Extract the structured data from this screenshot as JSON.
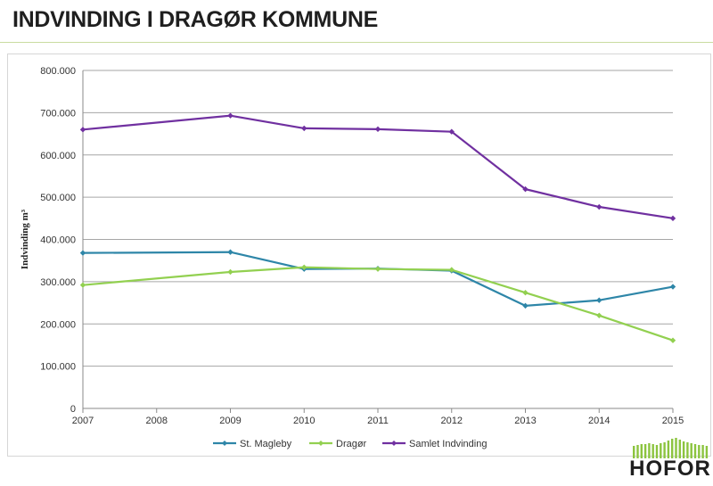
{
  "slide": {
    "title": "INDVINDING I DRAGØR KOMMUNE"
  },
  "logo": {
    "text": "HOFOR",
    "accent_color": "#8cc43f"
  },
  "chart_data": {
    "type": "line",
    "ylabel": "Indvinding m³",
    "xlabel": "",
    "x": [
      2007,
      2008,
      2009,
      2010,
      2011,
      2012,
      2013,
      2014,
      2015
    ],
    "x_tick_labels": [
      "2007",
      "2008",
      "2009",
      "2010",
      "2011",
      "2012",
      "2013",
      "2014",
      "2015"
    ],
    "xlim": [
      2007,
      2015
    ],
    "ylim": [
      0,
      800000
    ],
    "y_ticks": [
      0,
      100000,
      200000,
      300000,
      400000,
      500000,
      600000,
      700000,
      800000
    ],
    "y_tick_labels": [
      "0",
      "100.000",
      "200.000",
      "300.000",
      "400.000",
      "500.000",
      "600.000",
      "700.000",
      "800.000"
    ],
    "grid": true,
    "legend_position": "bottom",
    "series": [
      {
        "name": "St. Magleby",
        "color": "#2e86a8",
        "points": [
          [
            2007,
            368000
          ],
          [
            2009,
            370000
          ],
          [
            2010,
            330000
          ],
          [
            2011,
            331000
          ],
          [
            2012,
            326000
          ],
          [
            2013,
            243000
          ],
          [
            2014,
            256000
          ],
          [
            2015,
            288000
          ]
        ]
      },
      {
        "name": "Dragør",
        "color": "#92d050",
        "points": [
          [
            2007,
            292000
          ],
          [
            2009,
            323000
          ],
          [
            2010,
            334000
          ],
          [
            2011,
            330000
          ],
          [
            2012,
            328000
          ],
          [
            2013,
            274000
          ],
          [
            2014,
            220000
          ],
          [
            2015,
            161000
          ]
        ]
      },
      {
        "name": "Samlet Indvinding",
        "color": "#7030a0",
        "points": [
          [
            2007,
            660000
          ],
          [
            2009,
            693000
          ],
          [
            2010,
            663000
          ],
          [
            2011,
            661000
          ],
          [
            2012,
            655000
          ],
          [
            2013,
            519000
          ],
          [
            2014,
            477000
          ],
          [
            2015,
            450000
          ]
        ]
      }
    ]
  }
}
